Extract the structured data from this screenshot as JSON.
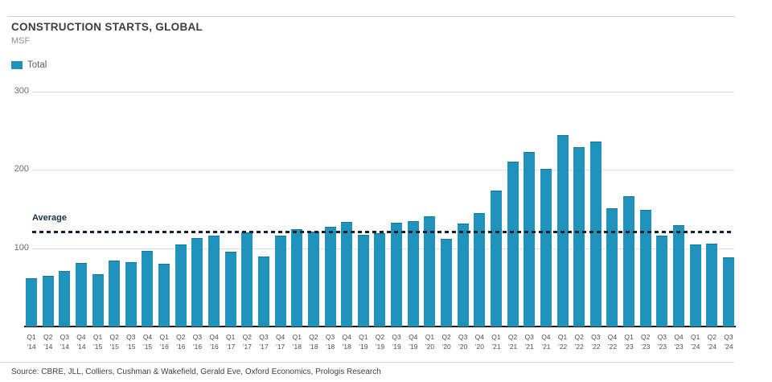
{
  "header": {
    "title": "CONSTRUCTION STARTS, GLOBAL",
    "subtitle": "MSF"
  },
  "legend": {
    "items": [
      {
        "label": "Total",
        "color": "#1f93bc"
      }
    ]
  },
  "footer": {
    "source": "Source: CBRE, JLL, Colliers, Cushman & Wakefield, Gerald Eve, Oxford Economics, Prologis Research"
  },
  "chart_data": {
    "type": "bar",
    "title": "CONSTRUCTION STARTS, GLOBAL",
    "ylabel": "MSF",
    "ylim": [
      0,
      300
    ],
    "yticks": [
      100,
      200,
      300
    ],
    "grid": true,
    "legend_position": "top-left",
    "bar_color": "#1f93bc",
    "average_line": {
      "label": "Average",
      "value": 120,
      "style": "dashed",
      "color": "#13202a"
    },
    "categories": [
      {
        "q": "Q1",
        "y": "’14"
      },
      {
        "q": "Q2",
        "y": "’14"
      },
      {
        "q": "Q3",
        "y": "’14"
      },
      {
        "q": "Q4",
        "y": "’14"
      },
      {
        "q": "Q1",
        "y": "’15"
      },
      {
        "q": "Q2",
        "y": "’15"
      },
      {
        "q": "Q3",
        "y": "’15"
      },
      {
        "q": "Q4",
        "y": "’15"
      },
      {
        "q": "Q1",
        "y": "’16"
      },
      {
        "q": "Q2",
        "y": "’16"
      },
      {
        "q": "Q3",
        "y": "’16"
      },
      {
        "q": "Q4",
        "y": "’16"
      },
      {
        "q": "Q1",
        "y": "’17"
      },
      {
        "q": "Q2",
        "y": "’17"
      },
      {
        "q": "Q3",
        "y": "’17"
      },
      {
        "q": "Q4",
        "y": "’17"
      },
      {
        "q": "Q1",
        "y": "’18"
      },
      {
        "q": "Q2",
        "y": "’18"
      },
      {
        "q": "Q3",
        "y": "’18"
      },
      {
        "q": "Q4",
        "y": "’18"
      },
      {
        "q": "Q1",
        "y": "’19"
      },
      {
        "q": "Q2",
        "y": "’19"
      },
      {
        "q": "Q3",
        "y": "’19"
      },
      {
        "q": "Q4",
        "y": "’19"
      },
      {
        "q": "Q1",
        "y": "’20"
      },
      {
        "q": "Q2",
        "y": "’20"
      },
      {
        "q": "Q3",
        "y": "’20"
      },
      {
        "q": "Q4",
        "y": "’20"
      },
      {
        "q": "Q1",
        "y": "’21"
      },
      {
        "q": "Q2",
        "y": "’21"
      },
      {
        "q": "Q3",
        "y": "’21"
      },
      {
        "q": "Q4",
        "y": "’21"
      },
      {
        "q": "Q1",
        "y": "’22"
      },
      {
        "q": "Q2",
        "y": "’22"
      },
      {
        "q": "Q3",
        "y": "’22"
      },
      {
        "q": "Q4",
        "y": "’22"
      },
      {
        "q": "Q1",
        "y": "’23"
      },
      {
        "q": "Q2",
        "y": "’23"
      },
      {
        "q": "Q3",
        "y": "’23"
      },
      {
        "q": "Q4",
        "y": "’23"
      },
      {
        "q": "Q1",
        "y": "’24"
      },
      {
        "q": "Q2",
        "y": "’24"
      },
      {
        "q": "Q3",
        "y": "’24"
      }
    ],
    "series": [
      {
        "name": "Total",
        "values": [
          61,
          64,
          70,
          80,
          66,
          83,
          81,
          96,
          79,
          104,
          112,
          115,
          95,
          119,
          88,
          115,
          123,
          120,
          126,
          133,
          116,
          118,
          132,
          134,
          140,
          111,
          130,
          144,
          173,
          210,
          222,
          200,
          243,
          228,
          235,
          150,
          165,
          148,
          115,
          128,
          104,
          105,
          87
        ]
      }
    ]
  }
}
